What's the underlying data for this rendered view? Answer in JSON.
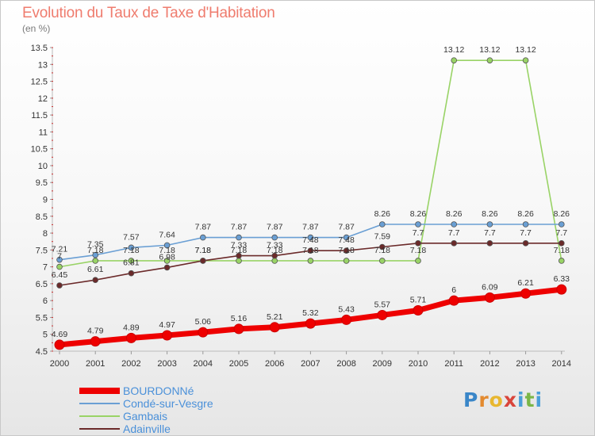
{
  "chart_data": {
    "type": "line",
    "title": "Evolution du Taux de Taxe d'Habitation",
    "subtitle": "(en %)",
    "x": [
      "2000",
      "2001",
      "2002",
      "2003",
      "2004",
      "2005",
      "2006",
      "2007",
      "2008",
      "2009",
      "2010",
      "2011",
      "2012",
      "2013",
      "2014"
    ],
    "ylim": [
      4.5,
      13.5
    ],
    "yticks": [
      "4.5",
      "5",
      "5.5",
      "6",
      "6.5",
      "7",
      "7.5",
      "8",
      "8.5",
      "9",
      "9.5",
      "10",
      "10.5",
      "11",
      "11.5",
      "12",
      "12.5",
      "13",
      "13.5"
    ],
    "grid": false,
    "legend_position": "bottom-left",
    "series": [
      {
        "name": "BOURDONNé",
        "color": "#ee0000",
        "values": [
          4.69,
          4.79,
          4.89,
          4.97,
          5.06,
          5.16,
          5.21,
          5.32,
          5.43,
          5.57,
          5.71,
          6,
          6.09,
          6.21,
          6.33
        ],
        "labels": [
          "4.69",
          "4.79",
          "4.89",
          "4.97",
          "5.06",
          "5.16",
          "5.21",
          "5.32",
          "5.43",
          "5.57",
          "5.71",
          "6",
          "6.09",
          "6.21",
          "6.33"
        ]
      },
      {
        "name": "Condé-sur-Vesgre",
        "color": "#6a9fd4",
        "values": [
          7.21,
          7.35,
          7.57,
          7.64,
          7.87,
          7.87,
          7.87,
          7.87,
          7.87,
          8.26,
          8.26,
          8.26,
          8.26,
          8.26,
          8.26
        ],
        "labels": [
          "7.21",
          "7.35",
          "7.57",
          "7.64",
          "7.87",
          "7.87",
          "7.87",
          "7.87",
          "7.87",
          "8.26",
          "8.26",
          "8.26",
          "8.26",
          "8.26",
          "8.26"
        ]
      },
      {
        "name": "Gambais",
        "color": "#99d366",
        "values": [
          7,
          7.18,
          7.18,
          7.18,
          7.18,
          7.18,
          7.18,
          7.18,
          7.18,
          7.18,
          7.18,
          13.12,
          13.12,
          13.12,
          7.18
        ],
        "labels": [
          "7",
          "7.18",
          "7.18",
          "7.18",
          "7.18",
          "7.18",
          "7.18",
          "7.18",
          "7.18",
          "7.18",
          "7.18",
          "13.12",
          "13.12",
          "13.12",
          "7.18"
        ]
      },
      {
        "name": "Adainville",
        "color": "#6b2a2a",
        "values": [
          6.45,
          6.61,
          6.81,
          6.98,
          7.18,
          7.33,
          7.33,
          7.48,
          7.48,
          7.59,
          7.7,
          7.7,
          7.7,
          7.7,
          7.7
        ],
        "labels": [
          "6.45",
          "6.61",
          "6.81",
          "6.98",
          "7.18",
          "7.33",
          "7.33",
          "7.48",
          "7.48",
          "7.59",
          "7.7",
          "7.7",
          "7.7",
          "7.7",
          "7.7"
        ]
      }
    ]
  },
  "logo": {
    "text": [
      "P",
      "r",
      "o",
      "x",
      "i",
      "t",
      "i"
    ]
  }
}
